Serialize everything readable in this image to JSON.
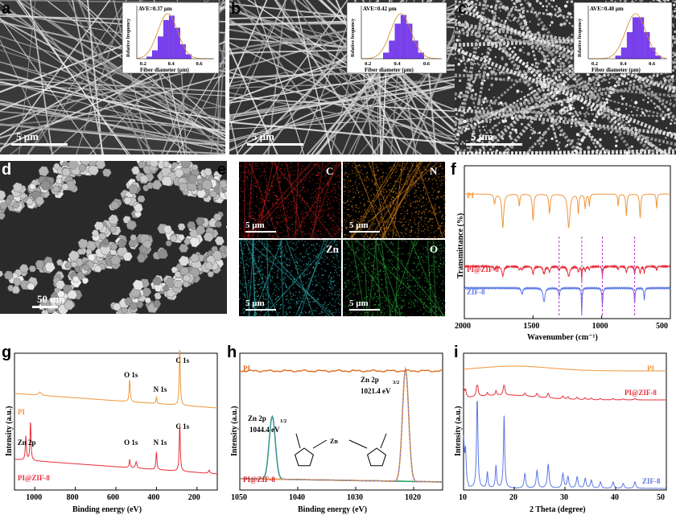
{
  "panels": {
    "a": "a",
    "b": "b",
    "c": "c",
    "d": "d",
    "e": "e",
    "f": "f",
    "g": "g",
    "h": "h",
    "i": "i"
  },
  "sem": {
    "a": {
      "scale": "5 μm",
      "ave": "AVE=0.37 μm",
      "peak": 0.37
    },
    "b": {
      "scale": "5 μm",
      "ave": "AVE=0.42 μm",
      "peak": 0.42
    },
    "c": {
      "scale": "5 μm",
      "ave": "AVE=0.48 μm",
      "peak": 0.48
    },
    "d": {
      "scale": "50 nm"
    },
    "inset": {
      "xlabel": "Fiber diameter (μm)",
      "ylabel": "Relative frequency",
      "ticks": [
        "0.2",
        "0.4",
        "0.6"
      ]
    }
  },
  "eds": {
    "maps": [
      {
        "el": "C",
        "color": "#c81e1e"
      },
      {
        "el": "N",
        "color": "#d9821a"
      },
      {
        "el": "Zn",
        "color": "#2fb3b8"
      },
      {
        "el": "O",
        "color": "#24a234"
      }
    ],
    "scale": "5 μm"
  },
  "chart_data": [
    {
      "panel": "f",
      "type": "line",
      "xlabel": "Wavenumber (cm⁻¹)",
      "ylabel": "Transmittance (%)",
      "xlim": [
        2000,
        500
      ],
      "xticks": [
        "2000",
        "1500",
        "1000",
        "500"
      ],
      "series": [
        {
          "name": "PI",
          "color": "#f0963c"
        },
        {
          "name": "PI@ZIF-8",
          "color": "#e8303c"
        },
        {
          "name": "ZIF-8",
          "color": "#5a78e6"
        }
      ],
      "markers": [
        1310,
        1145,
        995,
        760
      ]
    },
    {
      "panel": "g",
      "type": "line",
      "xlabel": "Binding energy (eV)",
      "ylabel": "Intensity (a.u.)",
      "xlim": [
        1100,
        100
      ],
      "xticks": [
        "1000",
        "800",
        "600",
        "400",
        "200"
      ],
      "series": [
        {
          "name": "PI",
          "color": "#f0963c"
        },
        {
          "name": "PI@ZIF-8",
          "color": "#e8303c"
        }
      ],
      "annotations": [
        "O 1s",
        "N 1s",
        "C 1s",
        "Zn 2p",
        "O 1s",
        "N 1s",
        "C 1s"
      ]
    },
    {
      "panel": "h",
      "type": "line",
      "xlabel": "Binding energy (eV)",
      "ylabel": "Intensity (a.u.)",
      "xlim": [
        1050,
        1015
      ],
      "xticks": [
        "1050",
        "1040",
        "1030",
        "1020"
      ],
      "series": [
        {
          "name": "PI",
          "color": "#e06a1a"
        },
        {
          "name": "PI@ZIF-8",
          "color": "#9a4ad6"
        }
      ],
      "annotations": {
        "zn12": "Zn 2p",
        "zn12sub": "1/2",
        "zn12ev": "1044.4 eV",
        "zn32": "Zn 2p",
        "zn32sub": "3/2",
        "zn32ev": "1021.4 eV",
        "zn": "Zn"
      }
    },
    {
      "panel": "i",
      "type": "line",
      "xlabel": "2 Theta (degree)",
      "ylabel": "Intensity (a.u.)",
      "xlim": [
        10,
        50
      ],
      "xticks": [
        "10",
        "20",
        "30",
        "40",
        "50"
      ],
      "series": [
        {
          "name": "PI",
          "color": "#f0963c"
        },
        {
          "name": "PI@ZIF-8",
          "color": "#e8303c"
        },
        {
          "name": "ZIF-8",
          "color": "#5a78e6"
        }
      ]
    }
  ]
}
